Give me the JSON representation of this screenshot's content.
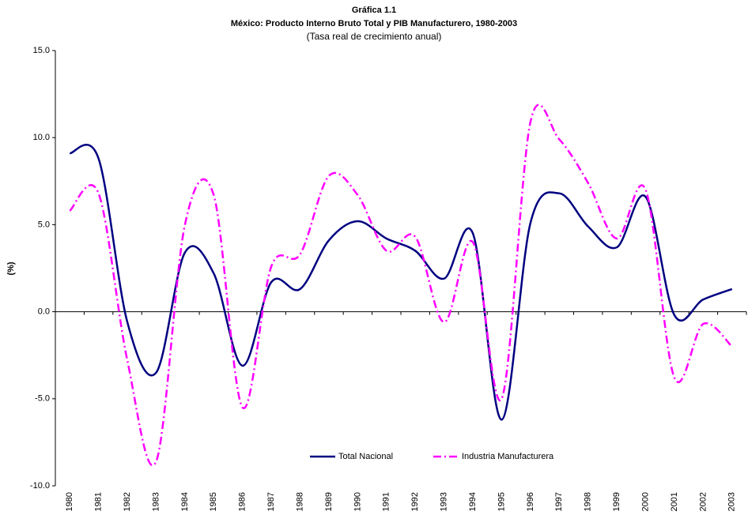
{
  "chart_data": {
    "type": "line",
    "title": "Gráfica 1.1",
    "subtitle": "México: Producto Interno Bruto Total y PIB Manufacturero, 1980-2003",
    "note": "(Tasa real de crecimiento anual)",
    "y_label": "(%)",
    "categories": [
      "1980",
      "1981",
      "1982",
      "1983",
      "1984",
      "1985",
      "1986",
      "1987",
      "1988",
      "1989",
      "1990",
      "1991",
      "1992",
      "1993",
      "1994",
      "1995",
      "1996",
      "1997",
      "1998",
      "1999",
      "2000",
      "2001",
      "2002",
      "2003"
    ],
    "series": [
      {
        "name": "Total Nacional",
        "color": "#000080",
        "values": [
          9.1,
          8.8,
          -0.6,
          -3.5,
          3.4,
          2.2,
          -3.1,
          1.7,
          1.3,
          4.1,
          5.2,
          4.2,
          3.5,
          1.9,
          4.5,
          -6.2,
          5.1,
          6.8,
          4.9,
          3.7,
          6.6,
          -0.2,
          0.7,
          1.3
        ]
      },
      {
        "name": "Industria Manufacturera",
        "color": "#ff00ff",
        "values": [
          5.8,
          6.8,
          -2.8,
          -8.6,
          5.0,
          6.7,
          -5.5,
          2.6,
          3.3,
          7.8,
          6.7,
          3.5,
          4.3,
          -0.6,
          4.0,
          -5.0,
          10.9,
          9.9,
          7.4,
          4.2,
          7.0,
          -3.8,
          -0.7,
          -2.0
        ]
      }
    ],
    "ylim": [
      -10,
      15
    ],
    "yticks": [
      {
        "value": -10,
        "label": "-10.0"
      },
      {
        "value": -5,
        "label": "-5.0"
      },
      {
        "value": 0,
        "label": "0.0"
      },
      {
        "value": 5,
        "label": "5.0"
      },
      {
        "value": 10,
        "label": "10.0"
      },
      {
        "value": 15,
        "label": "15.0"
      }
    ],
    "grid": false,
    "legend": "bottom"
  }
}
